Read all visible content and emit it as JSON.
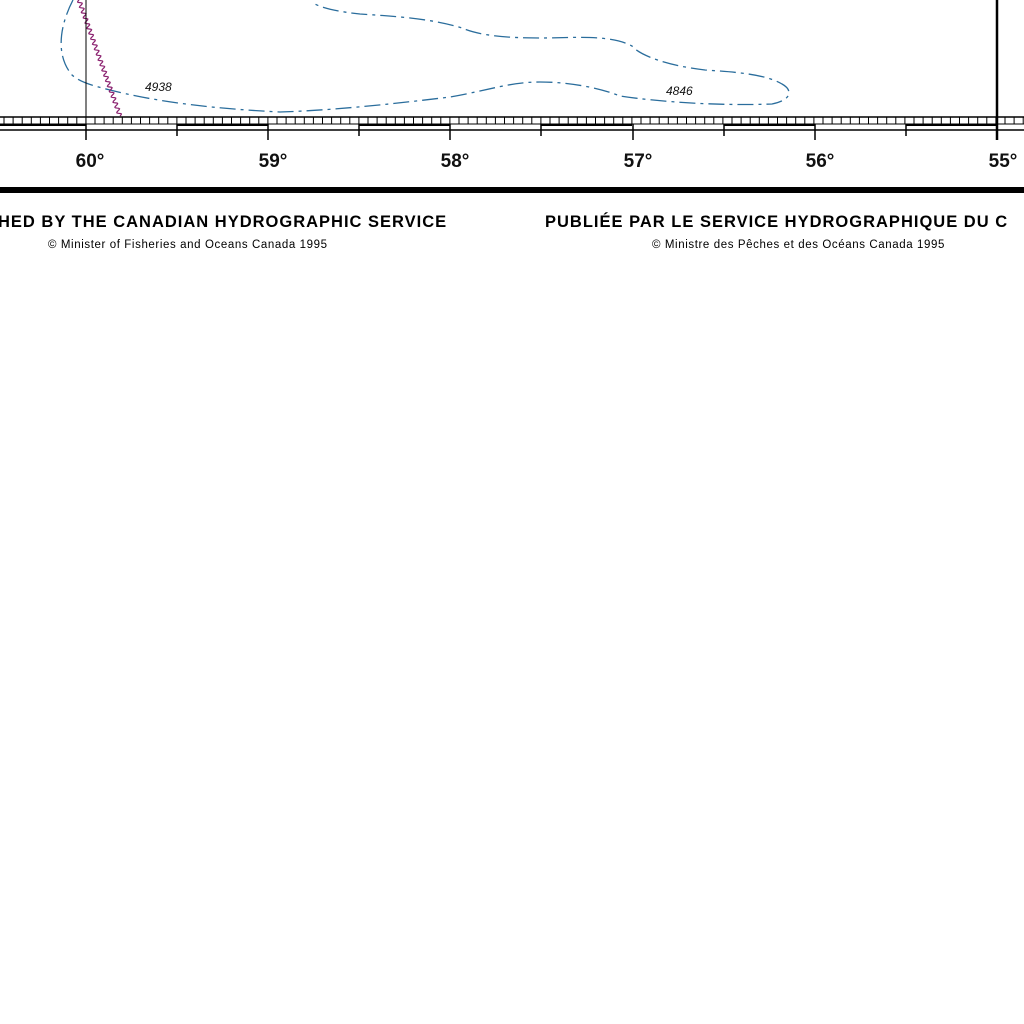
{
  "map": {
    "longitude_labels": [
      "60°",
      "59°",
      "58°",
      "57°",
      "56°",
      "55°"
    ],
    "depth_soundings": [
      "4938",
      "4846"
    ],
    "colors": {
      "depth_contour": "#2a6d9c",
      "boundary_line": "#8a1f6e",
      "frame": "#000000",
      "background": "#ffffff"
    },
    "icons": {
      "copyright_symbol": "copyright-icon"
    }
  },
  "credits": {
    "english": "HED BY THE CANADIAN HYDROGRAPHIC SERVICE",
    "english_copyright": "Minister of Fisheries and Oceans Canada 1995",
    "french": "PUBLIÉE PAR LE SERVICE HYDROGRAPHIQUE DU C",
    "french_copyright": "Ministre des Pêches et des Océans Canada 1995",
    "copyright_symbol": "©"
  }
}
